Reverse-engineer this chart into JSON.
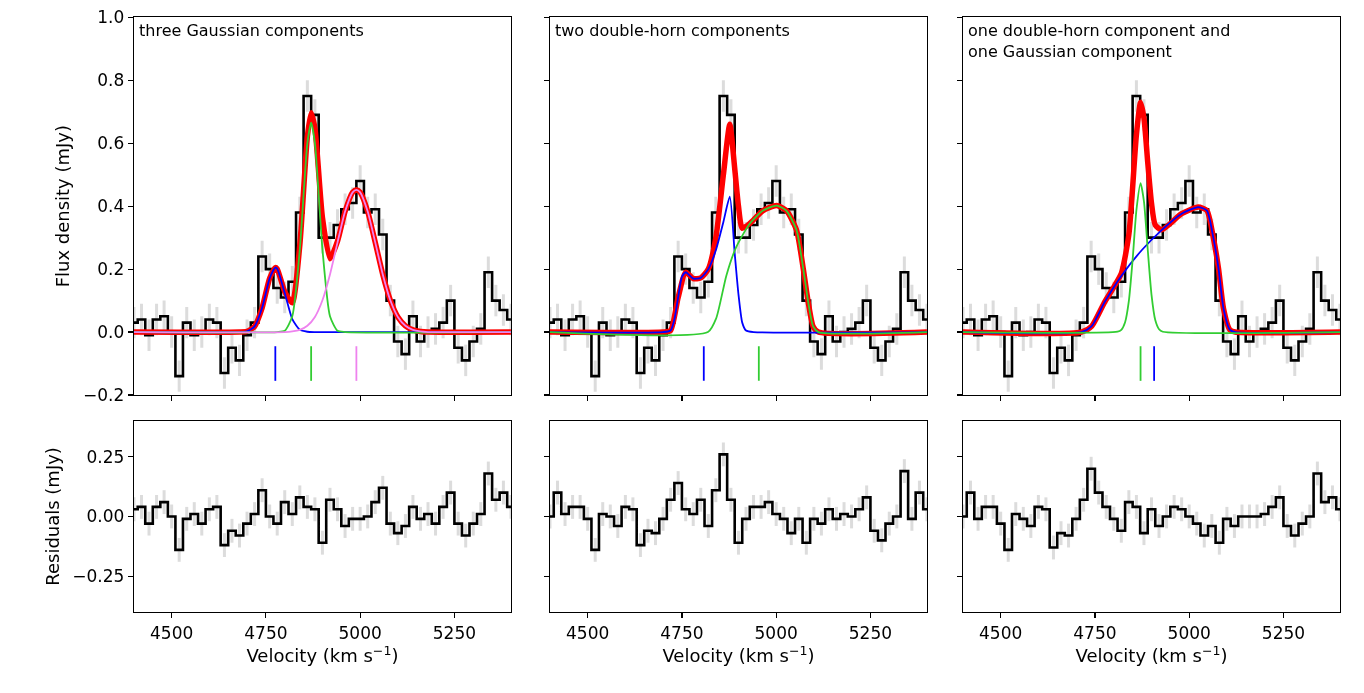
{
  "chart_data": [
    {
      "type": "line",
      "title": "three Gaussian components",
      "ylabel": "Flux density (mJy)",
      "xlim": [
        4400,
        5400
      ],
      "ylim": [
        -0.2,
        1.0
      ],
      "xticks": [
        {
          "value": 4500,
          "label": null
        },
        {
          "value": 4750,
          "label": null
        },
        {
          "value": 5000,
          "label": null
        },
        {
          "value": 5250,
          "label": null
        }
      ],
      "yticks": [
        {
          "value": -0.2,
          "label": "−0.2"
        },
        {
          "value": 0,
          "label": "0.0"
        },
        {
          "value": 0.2,
          "label": "0.2"
        },
        {
          "value": 0.4,
          "label": "0.4"
        },
        {
          "value": 0.6,
          "label": "0.6"
        },
        {
          "value": 0.8,
          "label": "0.8"
        },
        {
          "value": 1.0,
          "label": "1.0"
        }
      ],
      "tick_labels": "y",
      "x": [
        4400,
        4420,
        4440,
        4460,
        4480,
        4500,
        4520,
        4540,
        4560,
        4580,
        4600,
        4620,
        4640,
        4660,
        4680,
        4700,
        4720,
        4740,
        4760,
        4780,
        4800,
        4820,
        4840,
        4860,
        4880,
        4900,
        4920,
        4940,
        4960,
        4980,
        5000,
        5020,
        5040,
        5060,
        5080,
        5100,
        5120,
        5140,
        5160,
        5180,
        5200,
        5220,
        5240,
        5260,
        5280,
        5300,
        5320,
        5340,
        5360,
        5380,
        5400
      ],
      "series": [
        {
          "type": "step",
          "color": "#000000",
          "values": [
            0.03,
            0.04,
            -0.01,
            0.04,
            0.05,
            0.0,
            -0.14,
            0.03,
            -0.01,
            0.0,
            0.04,
            0.03,
            -0.13,
            -0.05,
            -0.09,
            -0.01,
            0.03,
            0.24,
            0.2,
            0.14,
            0.11,
            0.16,
            0.38,
            0.75,
            0.69,
            0.3,
            0.3,
            0.34,
            0.39,
            0.41,
            0.48,
            0.38,
            0.39,
            0.31,
            0.1,
            -0.03,
            -0.07,
            0.05,
            -0.03,
            0.0,
            0.01,
            0.03,
            0.1,
            -0.05,
            -0.09,
            -0.03,
            0.01,
            0.19,
            0.1,
            0.07,
            0.04
          ],
          "errors": [
            0.05,
            0.05,
            0.05,
            0.05,
            0.05,
            0.05,
            0.05,
            0.05,
            0.05,
            0.05,
            0.05,
            0.05,
            0.05,
            0.05,
            0.05,
            0.05,
            0.05,
            0.05,
            0.05,
            0.05,
            0.05,
            0.05,
            0.05,
            0.05,
            0.05,
            0.05,
            0.05,
            0.05,
            0.05,
            0.05,
            0.05,
            0.05,
            0.05,
            0.05,
            0.05,
            0.05,
            0.05,
            0.05,
            0.05,
            0.05,
            0.05,
            0.05,
            0.05,
            0.05,
            0.05,
            0.05,
            0.05,
            0.05,
            0.05,
            0.05,
            0.05
          ]
        },
        {
          "type": "line",
          "color": "#ff0000",
          "x": [
            4400,
            4680,
            4700,
            4720,
            4740,
            4760,
            4775,
            4780,
            4800,
            4820,
            4840,
            4860,
            4870,
            4880,
            4900,
            4920,
            4940,
            4960,
            4980,
            4990,
            5000,
            5020,
            5040,
            5060,
            5080,
            5100,
            5120,
            5140,
            5160,
            5180,
            5400
          ],
          "values": [
            0,
            0,
            0.002,
            0.018,
            0.077,
            0.171,
            0.205,
            0.201,
            0.128,
            0.093,
            0.277,
            0.621,
            0.697,
            0.648,
            0.364,
            0.233,
            0.289,
            0.383,
            0.444,
            0.452,
            0.444,
            0.383,
            0.285,
            0.183,
            0.101,
            0.048,
            0.02,
            0.007,
            0.002,
            0,
            0
          ]
        },
        {
          "type": "line",
          "color": "#0000ff",
          "x": [
            4400,
            4680,
            4700,
            4720,
            4740,
            4760,
            4775,
            4780,
            4800,
            4820,
            4840,
            4860,
            4880,
            5400
          ],
          "values": [
            0,
            0,
            0.002,
            0.018,
            0.077,
            0.171,
            0.205,
            0.201,
            0.124,
            0.041,
            0.007,
            0.001,
            0,
            0
          ]
        },
        {
          "type": "line",
          "color": "#32cd32",
          "x": [
            4400,
            4780,
            4800,
            4820,
            4840,
            4860,
            4870,
            4880,
            4900,
            4920,
            4940,
            4960,
            5400
          ],
          "values": [
            0,
            0,
            0.004,
            0.05,
            0.263,
            0.6,
            0.665,
            0.6,
            0.263,
            0.05,
            0.004,
            0,
            0
          ]
        },
        {
          "type": "line",
          "color": "#ee82ee",
          "x": [
            4400,
            4800,
            4820,
            4840,
            4860,
            4880,
            4900,
            4920,
            4940,
            4960,
            4980,
            4990,
            5000,
            5020,
            5040,
            5060,
            5080,
            5100,
            5120,
            5140,
            5160,
            5180,
            5400
          ],
          "values": [
            0,
            0,
            0.002,
            0.007,
            0.02,
            0.048,
            0.101,
            0.183,
            0.285,
            0.383,
            0.444,
            0.452,
            0.444,
            0.383,
            0.285,
            0.183,
            0.101,
            0.048,
            0.02,
            0.007,
            0.002,
            0,
            0
          ]
        },
        {
          "type": "line",
          "color": "#0000ff",
          "x": [
            4775,
            4775
          ],
          "values": [
            -0.045,
            -0.155
          ]
        },
        {
          "type": "line",
          "color": "#32cd32",
          "x": [
            4870,
            4870
          ],
          "values": [
            -0.045,
            -0.155
          ]
        },
        {
          "type": "line",
          "color": "#ee82ee",
          "x": [
            4990,
            4990
          ],
          "values": [
            -0.045,
            -0.155
          ]
        }
      ]
    },
    {
      "type": "line",
      "title": "two double-horn components",
      "xlim": [
        4400,
        5400
      ],
      "ylim": [
        -0.2,
        1.0
      ],
      "xticks": [
        {
          "value": 4500,
          "label": null
        },
        {
          "value": 4750,
          "label": null
        },
        {
          "value": 5000,
          "label": null
        },
        {
          "value": 5250,
          "label": null
        }
      ],
      "yticks": [
        {
          "value": -0.2,
          "label": null
        },
        {
          "value": 0,
          "label": null
        },
        {
          "value": 0.2,
          "label": null
        },
        {
          "value": 0.4,
          "label": null
        },
        {
          "value": 0.6,
          "label": null
        },
        {
          "value": 0.8,
          "label": null
        },
        {
          "value": 1.0,
          "label": null
        }
      ],
      "tick_labels": false,
      "x": [
        4400,
        4420,
        4440,
        4460,
        4480,
        4500,
        4520,
        4540,
        4560,
        4580,
        4600,
        4620,
        4640,
        4660,
        4680,
        4700,
        4720,
        4740,
        4760,
        4780,
        4800,
        4820,
        4840,
        4860,
        4880,
        4900,
        4920,
        4940,
        4960,
        4980,
        5000,
        5020,
        5040,
        5060,
        5080,
        5100,
        5120,
        5140,
        5160,
        5180,
        5200,
        5220,
        5240,
        5260,
        5280,
        5300,
        5320,
        5340,
        5360,
        5380,
        5400
      ],
      "series": [
        {
          "type": "step",
          "color": "#000000",
          "values": [
            0.03,
            0.04,
            -0.01,
            0.04,
            0.05,
            0.0,
            -0.14,
            0.03,
            -0.01,
            0.0,
            0.04,
            0.03,
            -0.13,
            -0.05,
            -0.09,
            -0.01,
            0.03,
            0.24,
            0.2,
            0.14,
            0.11,
            0.16,
            0.38,
            0.75,
            0.69,
            0.3,
            0.3,
            0.34,
            0.39,
            0.41,
            0.48,
            0.38,
            0.39,
            0.31,
            0.1,
            -0.03,
            -0.07,
            0.05,
            -0.03,
            0.0,
            0.01,
            0.03,
            0.1,
            -0.05,
            -0.09,
            -0.03,
            0.01,
            0.19,
            0.1,
            0.07,
            0.04
          ],
          "errors": [
            0.05,
            0.05,
            0.05,
            0.05,
            0.05,
            0.05,
            0.05,
            0.05,
            0.05,
            0.05,
            0.05,
            0.05,
            0.05,
            0.05,
            0.05,
            0.05,
            0.05,
            0.05,
            0.05,
            0.05,
            0.05,
            0.05,
            0.05,
            0.05,
            0.05,
            0.05,
            0.05,
            0.05,
            0.05,
            0.05,
            0.05,
            0.05,
            0.05,
            0.05,
            0.05,
            0.05,
            0.05,
            0.05,
            0.05,
            0.05,
            0.05,
            0.05,
            0.05,
            0.05,
            0.05,
            0.05,
            0.05,
            0.05,
            0.05,
            0.05,
            0.05
          ]
        },
        {
          "type": "line",
          "color": "#ff0000",
          "x": [
            4400,
            4700,
            4720,
            4740,
            4760,
            4780,
            4800,
            4820,
            4840,
            4860,
            4877,
            4890,
            4900,
            4910,
            4930,
            4965,
            5001,
            5027,
            5054,
            5072,
            5085,
            5098,
            5112,
            5400
          ],
          "values": [
            0,
            0,
            0.005,
            0.11,
            0.19,
            0.17,
            0.172,
            0.2,
            0.3,
            0.5,
            0.66,
            0.52,
            0.4,
            0.33,
            0.345,
            0.386,
            0.402,
            0.386,
            0.324,
            0.2,
            0.095,
            0.018,
            0,
            0
          ]
        },
        {
          "type": "line",
          "color": "#0000ff",
          "x": [
            4400,
            4700,
            4720,
            4730,
            4740,
            4750,
            4760,
            4780,
            4800,
            4820,
            4840,
            4860,
            4877,
            4890,
            4900,
            4910,
            4920,
            4940,
            5400
          ],
          "values": [
            0,
            0,
            0.005,
            0.04,
            0.11,
            0.175,
            0.19,
            0.17,
            0.172,
            0.2,
            0.26,
            0.35,
            0.43,
            0.25,
            0.12,
            0.03,
            0.005,
            0,
            0
          ]
        },
        {
          "type": "line",
          "color": "#32cd32",
          "x": [
            4400,
            4819,
            4841,
            4868,
            4894,
            4930,
            4965,
            5001,
            5027,
            5054,
            5072,
            5085,
            5098,
            5112,
            5400
          ],
          "values": [
            0,
            0,
            0.044,
            0.18,
            0.27,
            0.345,
            0.386,
            0.402,
            0.386,
            0.324,
            0.2,
            0.095,
            0.018,
            0,
            0
          ]
        },
        {
          "type": "line",
          "color": "#0000ff",
          "x": [
            4808,
            4808
          ],
          "values": [
            -0.045,
            -0.155
          ]
        },
        {
          "type": "line",
          "color": "#32cd32",
          "x": [
            4954,
            4954
          ],
          "values": [
            -0.045,
            -0.155
          ]
        }
      ]
    },
    {
      "type": "line",
      "title": "one double-horn component and\none Gaussian component",
      "xlim": [
        4400,
        5400
      ],
      "ylim": [
        -0.2,
        1.0
      ],
      "xticks": [
        {
          "value": 4500,
          "label": null
        },
        {
          "value": 4750,
          "label": null
        },
        {
          "value": 5000,
          "label": null
        },
        {
          "value": 5250,
          "label": null
        }
      ],
      "yticks": [
        {
          "value": -0.2,
          "label": null
        },
        {
          "value": 0,
          "label": null
        },
        {
          "value": 0.2,
          "label": null
        },
        {
          "value": 0.4,
          "label": null
        },
        {
          "value": 0.6,
          "label": null
        },
        {
          "value": 0.8,
          "label": null
        },
        {
          "value": 1.0,
          "label": null
        }
      ],
      "tick_labels": false,
      "x": [
        4400,
        4420,
        4440,
        4460,
        4480,
        4500,
        4520,
        4540,
        4560,
        4580,
        4600,
        4620,
        4640,
        4660,
        4680,
        4700,
        4720,
        4740,
        4760,
        4780,
        4800,
        4820,
        4840,
        4860,
        4880,
        4900,
        4920,
        4940,
        4960,
        4980,
        5000,
        5020,
        5040,
        5060,
        5080,
        5100,
        5120,
        5140,
        5160,
        5180,
        5200,
        5220,
        5240,
        5260,
        5280,
        5300,
        5320,
        5340,
        5360,
        5380,
        5400
      ],
      "series": [
        {
          "type": "step",
          "color": "#000000",
          "values": [
            0.03,
            0.04,
            -0.01,
            0.04,
            0.05,
            0.0,
            -0.14,
            0.03,
            -0.01,
            0.0,
            0.04,
            0.03,
            -0.13,
            -0.05,
            -0.09,
            -0.01,
            0.03,
            0.24,
            0.2,
            0.14,
            0.11,
            0.16,
            0.38,
            0.75,
            0.69,
            0.3,
            0.3,
            0.34,
            0.39,
            0.41,
            0.48,
            0.38,
            0.39,
            0.31,
            0.1,
            -0.03,
            -0.07,
            0.05,
            -0.03,
            0.0,
            0.01,
            0.03,
            0.1,
            -0.05,
            -0.09,
            -0.03,
            0.01,
            0.19,
            0.1,
            0.07,
            0.04
          ],
          "errors": [
            0.05,
            0.05,
            0.05,
            0.05,
            0.05,
            0.05,
            0.05,
            0.05,
            0.05,
            0.05,
            0.05,
            0.05,
            0.05,
            0.05,
            0.05,
            0.05,
            0.05,
            0.05,
            0.05,
            0.05,
            0.05,
            0.05,
            0.05,
            0.05,
            0.05,
            0.05,
            0.05,
            0.05,
            0.05,
            0.05,
            0.05,
            0.05,
            0.05,
            0.05,
            0.05,
            0.05,
            0.05,
            0.05,
            0.05,
            0.05,
            0.05,
            0.05,
            0.05,
            0.05,
            0.05,
            0.05,
            0.05,
            0.05,
            0.05,
            0.05,
            0.05
          ]
        },
        {
          "type": "line",
          "color": "#ff0000",
          "x": [
            4400,
            4714,
            4741,
            4776,
            4800,
            4820,
            4840,
            4860,
            4871,
            4880,
            4890,
            4900,
            4910,
            4927,
            4980,
            5024,
            5047,
            5064,
            5078,
            5091,
            5108,
            5122,
            5400
          ],
          "values": [
            0,
            0,
            0.018,
            0.096,
            0.143,
            0.186,
            0.31,
            0.627,
            0.73,
            0.68,
            0.54,
            0.41,
            0.34,
            0.325,
            0.376,
            0.397,
            0.386,
            0.3,
            0.2,
            0.075,
            0.007,
            0,
            0
          ]
        },
        {
          "type": "line",
          "color": "#0000ff",
          "x": [
            4400,
            4714,
            4741,
            4776,
            4821,
            4874,
            4927,
            4980,
            5024,
            5047,
            5064,
            5078,
            5091,
            5108,
            5122,
            5400
          ],
          "values": [
            0,
            0,
            0.018,
            0.096,
            0.18,
            0.26,
            0.324,
            0.376,
            0.397,
            0.386,
            0.3,
            0.2,
            0.075,
            0.007,
            0,
            0
          ]
        },
        {
          "type": "line",
          "color": "#32cd32",
          "x": [
            4400,
            4810,
            4820,
            4830,
            4840,
            4850,
            4860,
            4871,
            4880,
            4890,
            4900,
            4910,
            4920,
            4930,
            5400
          ],
          "values": [
            0,
            0.001,
            0.007,
            0.031,
            0.099,
            0.23,
            0.387,
            0.473,
            0.415,
            0.263,
            0.119,
            0.038,
            0.009,
            0.001,
            0
          ]
        },
        {
          "type": "line",
          "color": "#32cd32",
          "x": [
            4871,
            4871
          ],
          "values": [
            -0.045,
            -0.155
          ]
        },
        {
          "type": "line",
          "color": "#0000ff",
          "x": [
            4907,
            4907
          ],
          "values": [
            -0.045,
            -0.155
          ]
        }
      ]
    },
    {
      "type": "step",
      "xlabel": "Velocity (km s$^{−1}$)",
      "ylabel": "Residuals (mJy)",
      "xlim": [
        4400,
        5400
      ],
      "ylim": [
        -0.4,
        0.4
      ],
      "xticks": [
        4500,
        4750,
        5000,
        5250
      ],
      "yticks": [
        {
          "value": -0.25,
          "label": "−0.25"
        },
        {
          "value": 0,
          "label": "0.00"
        },
        {
          "value": 0.25,
          "label": "0.25"
        }
      ],
      "x": [
        4400,
        4420,
        4440,
        4460,
        4480,
        4500,
        4520,
        4540,
        4560,
        4580,
        4600,
        4620,
        4640,
        4660,
        4680,
        4700,
        4720,
        4740,
        4760,
        4780,
        4800,
        4820,
        4840,
        4860,
        4880,
        4900,
        4920,
        4940,
        4960,
        4980,
        5000,
        5020,
        5040,
        5060,
        5080,
        5100,
        5120,
        5140,
        5160,
        5180,
        5200,
        5220,
        5240,
        5260,
        5280,
        5300,
        5320,
        5340,
        5360,
        5380,
        5400
      ],
      "series": [
        {
          "color": "#000000",
          "values": [
            0.03,
            0.04,
            -0.03,
            0.04,
            0.06,
            0.0,
            -0.14,
            -0.01,
            0.01,
            -0.03,
            0.03,
            0.04,
            -0.12,
            -0.06,
            -0.08,
            -0.03,
            0.01,
            0.11,
            0.0,
            -0.03,
            0.06,
            0.01,
            0.08,
            0.04,
            0.03,
            -0.11,
            0.07,
            0.03,
            -0.04,
            -0.01,
            -0.01,
            0.0,
            0.06,
            0.12,
            -0.03,
            -0.07,
            -0.04,
            0.04,
            -0.01,
            0.01,
            -0.03,
            0.04,
            0.1,
            -0.03,
            -0.08,
            -0.03,
            0.01,
            0.18,
            0.07,
            0.1,
            0.04
          ],
          "errors": [
            0.05,
            0.05,
            0.05,
            0.05,
            0.05,
            0.05,
            0.05,
            0.05,
            0.05,
            0.05,
            0.05,
            0.05,
            0.05,
            0.05,
            0.05,
            0.05,
            0.05,
            0.05,
            0.05,
            0.05,
            0.05,
            0.05,
            0.05,
            0.05,
            0.05,
            0.05,
            0.05,
            0.05,
            0.05,
            0.05,
            0.05,
            0.05,
            0.05,
            0.05,
            0.05,
            0.05,
            0.05,
            0.05,
            0.05,
            0.05,
            0.05,
            0.05,
            0.05,
            0.05,
            0.05,
            0.05,
            0.05,
            0.05,
            0.05,
            0.05,
            0.05
          ]
        }
      ]
    },
    {
      "type": "step",
      "xlabel": "Velocity (km s$^{−1}$)",
      "xlim": [
        4400,
        5400
      ],
      "ylim": [
        -0.4,
        0.4
      ],
      "xticks": [
        4500,
        4750,
        5000,
        5250
      ],
      "yticks": [
        {
          "value": -0.25,
          "label": null
        },
        {
          "value": 0,
          "label": null
        },
        {
          "value": 0.25,
          "label": null
        }
      ],
      "tick_labels": "x",
      "x": [
        4400,
        4420,
        4440,
        4460,
        4480,
        4500,
        4520,
        4540,
        4560,
        4580,
        4600,
        4620,
        4640,
        4660,
        4680,
        4700,
        4720,
        4740,
        4760,
        4780,
        4800,
        4820,
        4840,
        4860,
        4880,
        4900,
        4920,
        4940,
        4960,
        4980,
        5000,
        5020,
        5040,
        5060,
        5080,
        5100,
        5120,
        5140,
        5160,
        5180,
        5200,
        5220,
        5240,
        5260,
        5280,
        5300,
        5320,
        5340,
        5360,
        5380,
        5400
      ],
      "series": [
        {
          "color": "#000000",
          "values": [
            0.0,
            0.1,
            0.01,
            0.04,
            0.04,
            -0.01,
            -0.14,
            0.01,
            0.0,
            -0.04,
            0.04,
            0.03,
            -0.12,
            -0.06,
            -0.07,
            -0.01,
            0.07,
            0.14,
            0.03,
            0.01,
            0.07,
            -0.04,
            0.11,
            0.26,
            0.07,
            -0.11,
            -0.01,
            0.04,
            0.04,
            0.06,
            0.01,
            -0.01,
            -0.07,
            -0.01,
            -0.11,
            -0.01,
            -0.03,
            0.03,
            -0.01,
            0.01,
            0.0,
            0.03,
            0.08,
            -0.06,
            -0.1,
            -0.03,
            0.0,
            0.19,
            -0.01,
            0.1,
            0.03
          ],
          "errors": [
            0.05,
            0.05,
            0.05,
            0.05,
            0.05,
            0.05,
            0.05,
            0.05,
            0.05,
            0.05,
            0.05,
            0.05,
            0.05,
            0.05,
            0.05,
            0.05,
            0.05,
            0.05,
            0.05,
            0.05,
            0.05,
            0.05,
            0.05,
            0.05,
            0.05,
            0.05,
            0.05,
            0.05,
            0.05,
            0.05,
            0.05,
            0.05,
            0.05,
            0.05,
            0.05,
            0.05,
            0.05,
            0.05,
            0.05,
            0.05,
            0.05,
            0.05,
            0.05,
            0.05,
            0.05,
            0.05,
            0.05,
            0.05,
            0.05,
            0.05,
            0.05
          ]
        }
      ]
    },
    {
      "type": "step",
      "xlabel": "Velocity (km s$^{−1}$)",
      "xlim": [
        4400,
        5400
      ],
      "ylim": [
        -0.4,
        0.4
      ],
      "xticks": [
        4500,
        4750,
        5000,
        5250
      ],
      "yticks": [
        {
          "value": -0.25,
          "label": null
        },
        {
          "value": 0,
          "label": null
        },
        {
          "value": 0.25,
          "label": null
        }
      ],
      "tick_labels": "x",
      "x": [
        4400,
        4420,
        4440,
        4460,
        4480,
        4500,
        4520,
        4540,
        4560,
        4580,
        4600,
        4620,
        4640,
        4660,
        4680,
        4700,
        4720,
        4740,
        4760,
        4780,
        4800,
        4820,
        4840,
        4860,
        4880,
        4900,
        4920,
        4940,
        4960,
        4980,
        5000,
        5020,
        5040,
        5060,
        5080,
        5100,
        5120,
        5140,
        5160,
        5180,
        5200,
        5220,
        5240,
        5260,
        5280,
        5300,
        5320,
        5340,
        5360,
        5380,
        5400
      ],
      "series": [
        {
          "color": "#000000",
          "values": [
            0.0,
            0.1,
            -0.01,
            0.04,
            0.04,
            -0.03,
            -0.14,
            0.01,
            -0.01,
            -0.04,
            0.04,
            0.03,
            -0.13,
            -0.07,
            -0.08,
            -0.01,
            0.07,
            0.2,
            0.1,
            0.04,
            -0.01,
            -0.06,
            0.06,
            0.04,
            -0.07,
            0.03,
            -0.04,
            0.0,
            0.04,
            0.03,
            0.0,
            -0.03,
            -0.08,
            -0.04,
            -0.11,
            -0.01,
            -0.04,
            0.0,
            0.0,
            0.0,
            0.01,
            0.04,
            0.08,
            -0.04,
            -0.08,
            -0.03,
            0.0,
            0.18,
            0.06,
            0.08,
            0.03
          ],
          "errors": [
            0.05,
            0.05,
            0.05,
            0.05,
            0.05,
            0.05,
            0.05,
            0.05,
            0.05,
            0.05,
            0.05,
            0.05,
            0.05,
            0.05,
            0.05,
            0.05,
            0.05,
            0.05,
            0.05,
            0.05,
            0.05,
            0.05,
            0.05,
            0.05,
            0.05,
            0.05,
            0.05,
            0.05,
            0.05,
            0.05,
            0.05,
            0.05,
            0.05,
            0.05,
            0.05,
            0.05,
            0.05,
            0.05,
            0.05,
            0.05,
            0.05,
            0.05,
            0.05,
            0.05,
            0.05,
            0.05,
            0.05,
            0.05,
            0.05,
            0.05,
            0.05
          ]
        }
      ]
    }
  ]
}
